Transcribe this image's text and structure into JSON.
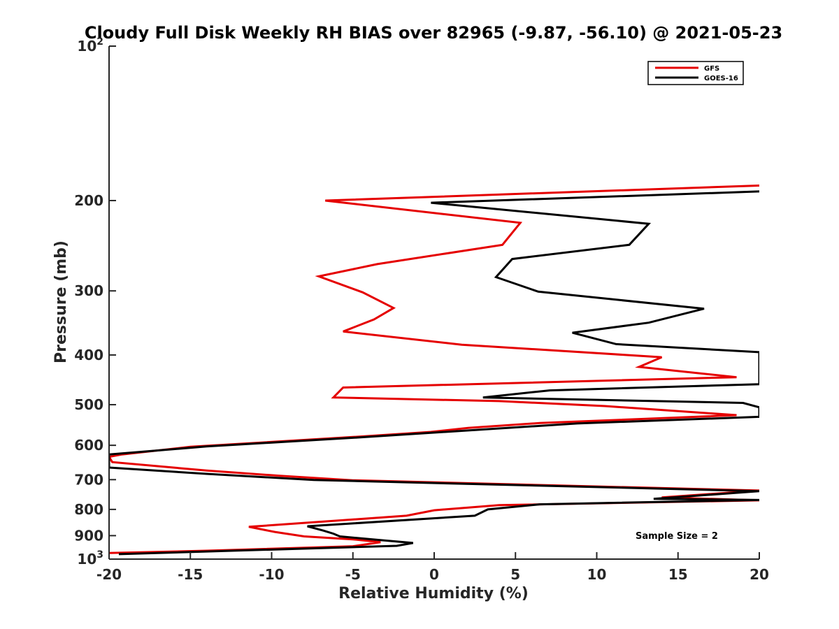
{
  "chart_data": {
    "type": "line",
    "title": "Cloudy Full Disk Weekly RH BIAS over 82965 (-9.87, -56.10) @ 2021-05-23",
    "xlabel": "Relative Humidity (%)",
    "ylabel": "Pressure (mb)",
    "xlim": [
      -20,
      20
    ],
    "ylim": [
      100,
      1000
    ],
    "y_scale": "log",
    "y_reversed": true,
    "grid": false,
    "legend_position": "top-right",
    "x_ticks": [
      -20,
      -15,
      -10,
      -5,
      0,
      5,
      10,
      15,
      20
    ],
    "x_tick_labels": [
      "-20",
      "-15",
      "-10",
      "-5",
      "0",
      "5",
      "10",
      "15",
      "20"
    ],
    "y_ticks": [
      100,
      200,
      300,
      400,
      500,
      600,
      700,
      800,
      900,
      1000
    ],
    "y_tick_labels": [
      {
        "base": "10",
        "exp": "2"
      },
      {
        "base": "200",
        "exp": ""
      },
      {
        "base": "300",
        "exp": ""
      },
      {
        "base": "400",
        "exp": ""
      },
      {
        "base": "500",
        "exp": ""
      },
      {
        "base": "600",
        "exp": ""
      },
      {
        "base": "700",
        "exp": ""
      },
      {
        "base": "800",
        "exp": ""
      },
      {
        "base": "900",
        "exp": ""
      },
      {
        "base": "10",
        "exp": "3"
      }
    ],
    "annotation": "Sample Size = 2",
    "series": [
      {
        "name": "GFS",
        "color": "#e50000",
        "points": [
          [
            20,
            187
          ],
          [
            -6.7,
            200
          ],
          [
            5.3,
            221
          ],
          [
            4.2,
            244
          ],
          [
            -3.5,
            266
          ],
          [
            -7.1,
            281
          ],
          [
            -4.4,
            302
          ],
          [
            -2.5,
            324
          ],
          [
            -3.7,
            341
          ],
          [
            -5.6,
            360
          ],
          [
            1.7,
            382
          ],
          [
            14,
            404
          ],
          [
            12.6,
            422
          ],
          [
            18.6,
            442
          ],
          [
            -5.6,
            463
          ],
          [
            -6.2,
            484
          ],
          [
            4,
            492
          ],
          [
            10.5,
            503
          ],
          [
            18.6,
            524
          ],
          [
            6.5,
            543
          ],
          [
            2.1,
            555
          ],
          [
            -0.2,
            565
          ],
          [
            -5,
            578
          ],
          [
            -15,
            604
          ],
          [
            -19.2,
            625
          ],
          [
            -20,
            632
          ],
          [
            -19.8,
            647
          ],
          [
            -14,
            672
          ],
          [
            -9.5,
            688
          ],
          [
            -5,
            702
          ],
          [
            20,
            735
          ],
          [
            14,
            758
          ],
          [
            20,
            768
          ],
          [
            4,
            785
          ],
          [
            0,
            803
          ],
          [
            -1.7,
            823
          ],
          [
            -11.4,
            865
          ],
          [
            -9.8,
            885
          ],
          [
            -8,
            903
          ],
          [
            -5,
            915
          ],
          [
            -3.3,
            927
          ],
          [
            -5,
            944
          ],
          [
            -14,
            963
          ],
          [
            -20,
            973
          ]
        ]
      },
      {
        "name": "GOES-16",
        "color": "#000000",
        "points": [
          [
            20,
            192
          ],
          [
            -0.2,
            202
          ],
          [
            13.2,
            222
          ],
          [
            12,
            244
          ],
          [
            4.8,
            260
          ],
          [
            3.8,
            282
          ],
          [
            6.4,
            301
          ],
          [
            16.6,
            325
          ],
          [
            13.2,
            346
          ],
          [
            8.5,
            362
          ],
          [
            11.2,
            381
          ],
          [
            20,
            395
          ],
          [
            20,
            456
          ],
          [
            7.1,
            469
          ],
          [
            3,
            484
          ],
          [
            19,
            496
          ],
          [
            20,
            506
          ],
          [
            20,
            528
          ],
          [
            8.8,
            544
          ],
          [
            -5,
            580
          ],
          [
            -14,
            603
          ],
          [
            -20,
            625
          ],
          [
            -20,
            663
          ],
          [
            -14,
            682
          ],
          [
            -7.4,
            701
          ],
          [
            20,
            737
          ],
          [
            13.5,
            763
          ],
          [
            20,
            767
          ],
          [
            6.5,
            782
          ],
          [
            3.3,
            800
          ],
          [
            2.5,
            823
          ],
          [
            -7.8,
            863
          ],
          [
            -6.8,
            880
          ],
          [
            -6.2,
            892
          ],
          [
            -5.8,
            903
          ],
          [
            -3.5,
            917
          ],
          [
            -1.3,
            930
          ],
          [
            -2.3,
            942
          ],
          [
            -19.4,
            978
          ]
        ]
      }
    ]
  }
}
